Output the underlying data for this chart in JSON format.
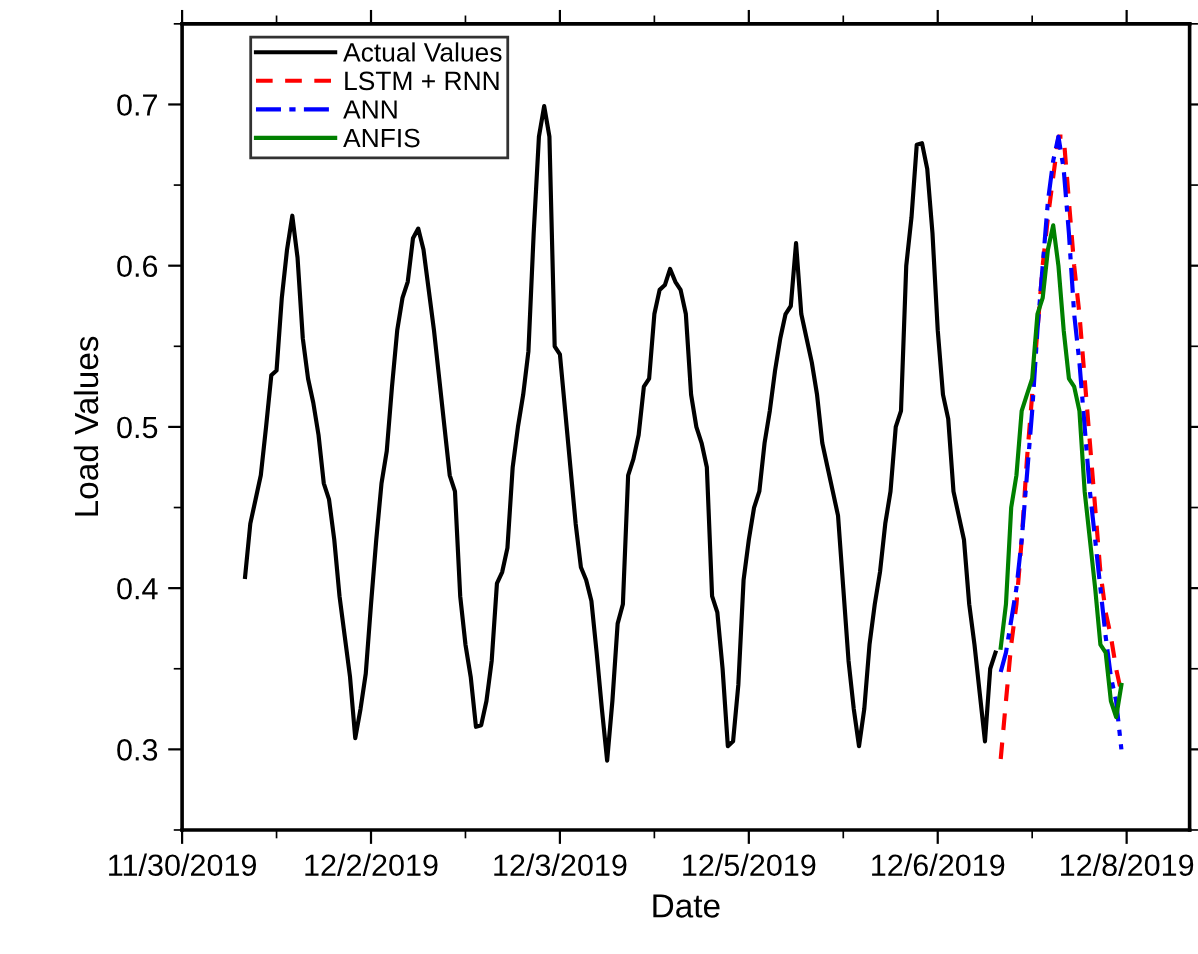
{
  "chart_data": {
    "type": "line",
    "xlabel": "Date",
    "ylabel": "Load Values",
    "xlim": [
      "2019-11-30T12:00",
      "2019-12-08T12:00"
    ],
    "xticks": [
      {
        "value": "2019-11-30T12:00",
        "label": "11/30/2019"
      },
      {
        "value": "2019-12-02T00:00",
        "label": "12/2/2019"
      },
      {
        "value": "2019-12-03T12:00",
        "label": "12/3/2019"
      },
      {
        "value": "2019-12-05T00:00",
        "label": "12/5/2019"
      },
      {
        "value": "2019-12-06T12:00",
        "label": "12/6/2019"
      },
      {
        "value": "2019-12-08T00:00",
        "label": "12/8/2019"
      }
    ],
    "ylim": [
      0.25,
      0.75
    ],
    "yticks": [
      0.3,
      0.4,
      0.5,
      0.6,
      0.7
    ],
    "legend": "top left",
    "grid": false,
    "series": [
      {
        "name": "Actual Values",
        "color": "#000000",
        "line_style": "solid",
        "x": [
          "2019-12-01T00:00",
          "2019-12-01T01:00",
          "2019-12-01T02:00",
          "2019-12-01T03:00",
          "2019-12-01T04:00",
          "2019-12-01T05:00",
          "2019-12-01T06:00",
          "2019-12-01T07:00",
          "2019-12-01T08:00",
          "2019-12-01T09:00",
          "2019-12-01T10:00",
          "2019-12-01T11:00",
          "2019-12-01T12:00",
          "2019-12-01T13:00",
          "2019-12-01T14:00",
          "2019-12-01T15:00",
          "2019-12-01T16:00",
          "2019-12-01T17:00",
          "2019-12-01T18:00",
          "2019-12-01T19:00",
          "2019-12-01T20:00",
          "2019-12-01T21:00",
          "2019-12-01T22:00",
          "2019-12-01T23:00",
          "2019-12-02T00:00",
          "2019-12-02T01:00",
          "2019-12-02T02:00",
          "2019-12-02T03:00",
          "2019-12-02T04:00",
          "2019-12-02T05:00",
          "2019-12-02T06:00",
          "2019-12-02T07:00",
          "2019-12-02T08:00",
          "2019-12-02T09:00",
          "2019-12-02T10:00",
          "2019-12-02T11:00",
          "2019-12-02T12:00",
          "2019-12-02T13:00",
          "2019-12-02T14:00",
          "2019-12-02T15:00",
          "2019-12-02T16:00",
          "2019-12-02T17:00",
          "2019-12-02T18:00",
          "2019-12-02T19:00",
          "2019-12-02T20:00",
          "2019-12-02T21:00",
          "2019-12-02T22:00",
          "2019-12-02T23:00",
          "2019-12-03T00:00",
          "2019-12-03T01:00",
          "2019-12-03T02:00",
          "2019-12-03T03:00",
          "2019-12-03T04:00",
          "2019-12-03T05:00",
          "2019-12-03T06:00",
          "2019-12-03T07:00",
          "2019-12-03T08:00",
          "2019-12-03T09:00",
          "2019-12-03T10:00",
          "2019-12-03T11:00",
          "2019-12-03T12:00",
          "2019-12-03T13:00",
          "2019-12-03T14:00",
          "2019-12-03T15:00",
          "2019-12-03T16:00",
          "2019-12-03T17:00",
          "2019-12-03T18:00",
          "2019-12-03T19:00",
          "2019-12-03T20:00",
          "2019-12-03T21:00",
          "2019-12-03T22:00",
          "2019-12-03T23:00",
          "2019-12-04T00:00",
          "2019-12-04T01:00",
          "2019-12-04T02:00",
          "2019-12-04T03:00",
          "2019-12-04T04:00",
          "2019-12-04T05:00",
          "2019-12-04T06:00",
          "2019-12-04T07:00",
          "2019-12-04T08:00",
          "2019-12-04T09:00",
          "2019-12-04T10:00",
          "2019-12-04T11:00",
          "2019-12-04T12:00",
          "2019-12-04T13:00",
          "2019-12-04T14:00",
          "2019-12-04T15:00",
          "2019-12-04T16:00",
          "2019-12-04T17:00",
          "2019-12-04T18:00",
          "2019-12-04T19:00",
          "2019-12-04T20:00",
          "2019-12-04T21:00",
          "2019-12-04T22:00",
          "2019-12-04T23:00",
          "2019-12-05T00:00",
          "2019-12-05T01:00",
          "2019-12-05T02:00",
          "2019-12-05T03:00",
          "2019-12-05T04:00",
          "2019-12-05T05:00",
          "2019-12-05T06:00",
          "2019-12-05T07:00",
          "2019-12-05T08:00",
          "2019-12-05T09:00",
          "2019-12-05T10:00",
          "2019-12-05T11:00",
          "2019-12-05T12:00",
          "2019-12-05T13:00",
          "2019-12-05T14:00",
          "2019-12-05T15:00",
          "2019-12-05T16:00",
          "2019-12-05T17:00",
          "2019-12-05T18:00",
          "2019-12-05T19:00",
          "2019-12-05T20:00",
          "2019-12-05T21:00",
          "2019-12-05T22:00",
          "2019-12-05T23:00",
          "2019-12-06T00:00",
          "2019-12-06T01:00",
          "2019-12-06T02:00",
          "2019-12-06T03:00",
          "2019-12-06T04:00",
          "2019-12-06T05:00",
          "2019-12-06T06:00",
          "2019-12-06T07:00",
          "2019-12-06T08:00",
          "2019-12-06T09:00",
          "2019-12-06T10:00",
          "2019-12-06T11:00",
          "2019-12-06T12:00",
          "2019-12-06T13:00",
          "2019-12-06T14:00",
          "2019-12-06T15:00",
          "2019-12-06T16:00",
          "2019-12-06T17:00",
          "2019-12-06T18:00",
          "2019-12-06T19:00",
          "2019-12-06T20:00",
          "2019-12-06T21:00",
          "2019-12-06T22:00",
          "2019-12-06T23:00"
        ],
        "values": [
          0.407,
          0.44,
          0.455,
          0.47,
          0.5,
          0.532,
          0.535,
          0.58,
          0.61,
          0.631,
          0.605,
          0.555,
          0.53,
          0.515,
          0.495,
          0.465,
          0.455,
          0.43,
          0.395,
          0.37,
          0.345,
          0.307,
          0.325,
          0.347,
          0.39,
          0.43,
          0.465,
          0.485,
          0.525,
          0.56,
          0.58,
          0.59,
          0.617,
          0.623,
          0.61,
          0.585,
          0.56,
          0.53,
          0.5,
          0.47,
          0.46,
          0.395,
          0.365,
          0.345,
          0.314,
          0.315,
          0.33,
          0.355,
          0.403,
          0.41,
          0.425,
          0.475,
          0.5,
          0.52,
          0.547,
          0.62,
          0.68,
          0.699,
          0.68,
          0.55,
          0.545,
          0.51,
          0.475,
          0.44,
          0.413,
          0.405,
          0.392,
          0.36,
          0.325,
          0.293,
          0.33,
          0.378,
          0.39,
          0.47,
          0.48,
          0.495,
          0.525,
          0.53,
          0.57,
          0.585,
          0.588,
          0.598,
          0.59,
          0.585,
          0.57,
          0.52,
          0.5,
          0.49,
          0.475,
          0.395,
          0.385,
          0.35,
          0.302,
          0.305,
          0.34,
          0.405,
          0.43,
          0.45,
          0.46,
          0.49,
          0.51,
          0.535,
          0.555,
          0.57,
          0.575,
          0.614,
          0.57,
          0.555,
          0.54,
          0.52,
          0.49,
          0.475,
          0.46,
          0.445,
          0.4,
          0.355,
          0.325,
          0.302,
          0.325,
          0.365,
          0.39,
          0.41,
          0.44,
          0.46,
          0.5,
          0.51,
          0.6,
          0.63,
          0.675,
          0.676,
          0.66,
          0.62,
          0.56,
          0.52,
          0.505,
          0.46,
          0.445,
          0.43,
          0.39,
          0.365,
          0.335,
          0.305,
          0.35,
          0.36
        ]
      },
      {
        "name": "LSTM + RNN",
        "color": "#ff0000",
        "line_style": "dashed",
        "x": [
          "2019-12-07T00:00",
          "2019-12-07T01:00",
          "2019-12-07T02:00",
          "2019-12-07T03:00",
          "2019-12-07T04:00",
          "2019-12-07T05:00",
          "2019-12-07T06:00",
          "2019-12-07T07:00",
          "2019-12-07T08:00",
          "2019-12-07T09:00",
          "2019-12-07T10:00",
          "2019-12-07T11:00",
          "2019-12-07T12:00",
          "2019-12-07T13:00",
          "2019-12-07T14:00",
          "2019-12-07T15:00",
          "2019-12-07T16:00",
          "2019-12-07T17:00",
          "2019-12-07T18:00",
          "2019-12-07T19:00",
          "2019-12-07T20:00",
          "2019-12-07T21:00",
          "2019-12-07T22:00",
          "2019-12-07T23:00"
        ],
        "values": [
          0.294,
          0.33,
          0.365,
          0.39,
          0.43,
          0.48,
          0.52,
          0.56,
          0.6,
          0.63,
          0.655,
          0.68,
          0.68,
          0.64,
          0.6,
          0.57,
          0.53,
          0.49,
          0.45,
          0.41,
          0.385,
          0.37,
          0.35,
          0.335
        ]
      },
      {
        "name": "ANN",
        "color": "#0000ff",
        "line_style": "dashdot",
        "x": [
          "2019-12-07T00:00",
          "2019-12-07T01:00",
          "2019-12-07T02:00",
          "2019-12-07T03:00",
          "2019-12-07T04:00",
          "2019-12-07T05:00",
          "2019-12-07T06:00",
          "2019-12-07T07:00",
          "2019-12-07T08:00",
          "2019-12-07T09:00",
          "2019-12-07T10:00",
          "2019-12-07T11:00",
          "2019-12-07T12:00",
          "2019-12-07T13:00",
          "2019-12-07T14:00",
          "2019-12-07T15:00",
          "2019-12-07T16:00",
          "2019-12-07T17:00",
          "2019-12-07T18:00",
          "2019-12-07T19:00",
          "2019-12-07T20:00",
          "2019-12-07T21:00",
          "2019-12-07T22:00",
          "2019-12-07T23:00"
        ],
        "values": [
          0.348,
          0.36,
          0.38,
          0.4,
          0.43,
          0.47,
          0.51,
          0.56,
          0.6,
          0.64,
          0.665,
          0.68,
          0.66,
          0.62,
          0.57,
          0.54,
          0.5,
          0.46,
          0.43,
          0.4,
          0.37,
          0.345,
          0.33,
          0.3
        ]
      },
      {
        "name": "ANFIS",
        "color": "#008000",
        "line_style": "solid",
        "x": [
          "2019-12-07T00:00",
          "2019-12-07T01:00",
          "2019-12-07T02:00",
          "2019-12-07T03:00",
          "2019-12-07T04:00",
          "2019-12-07T05:00",
          "2019-12-07T06:00",
          "2019-12-07T07:00",
          "2019-12-07T08:00",
          "2019-12-07T09:00",
          "2019-12-07T10:00",
          "2019-12-07T11:00",
          "2019-12-07T12:00",
          "2019-12-07T13:00",
          "2019-12-07T14:00",
          "2019-12-07T15:00",
          "2019-12-07T16:00",
          "2019-12-07T17:00",
          "2019-12-07T18:00",
          "2019-12-07T19:00",
          "2019-12-07T20:00",
          "2019-12-07T21:00",
          "2019-12-07T22:00",
          "2019-12-07T23:00"
        ],
        "values": [
          0.363,
          0.39,
          0.45,
          0.47,
          0.51,
          0.52,
          0.53,
          0.57,
          0.58,
          0.61,
          0.625,
          0.6,
          0.56,
          0.53,
          0.525,
          0.51,
          0.46,
          0.43,
          0.4,
          0.365,
          0.36,
          0.33,
          0.32,
          0.34
        ]
      }
    ]
  }
}
